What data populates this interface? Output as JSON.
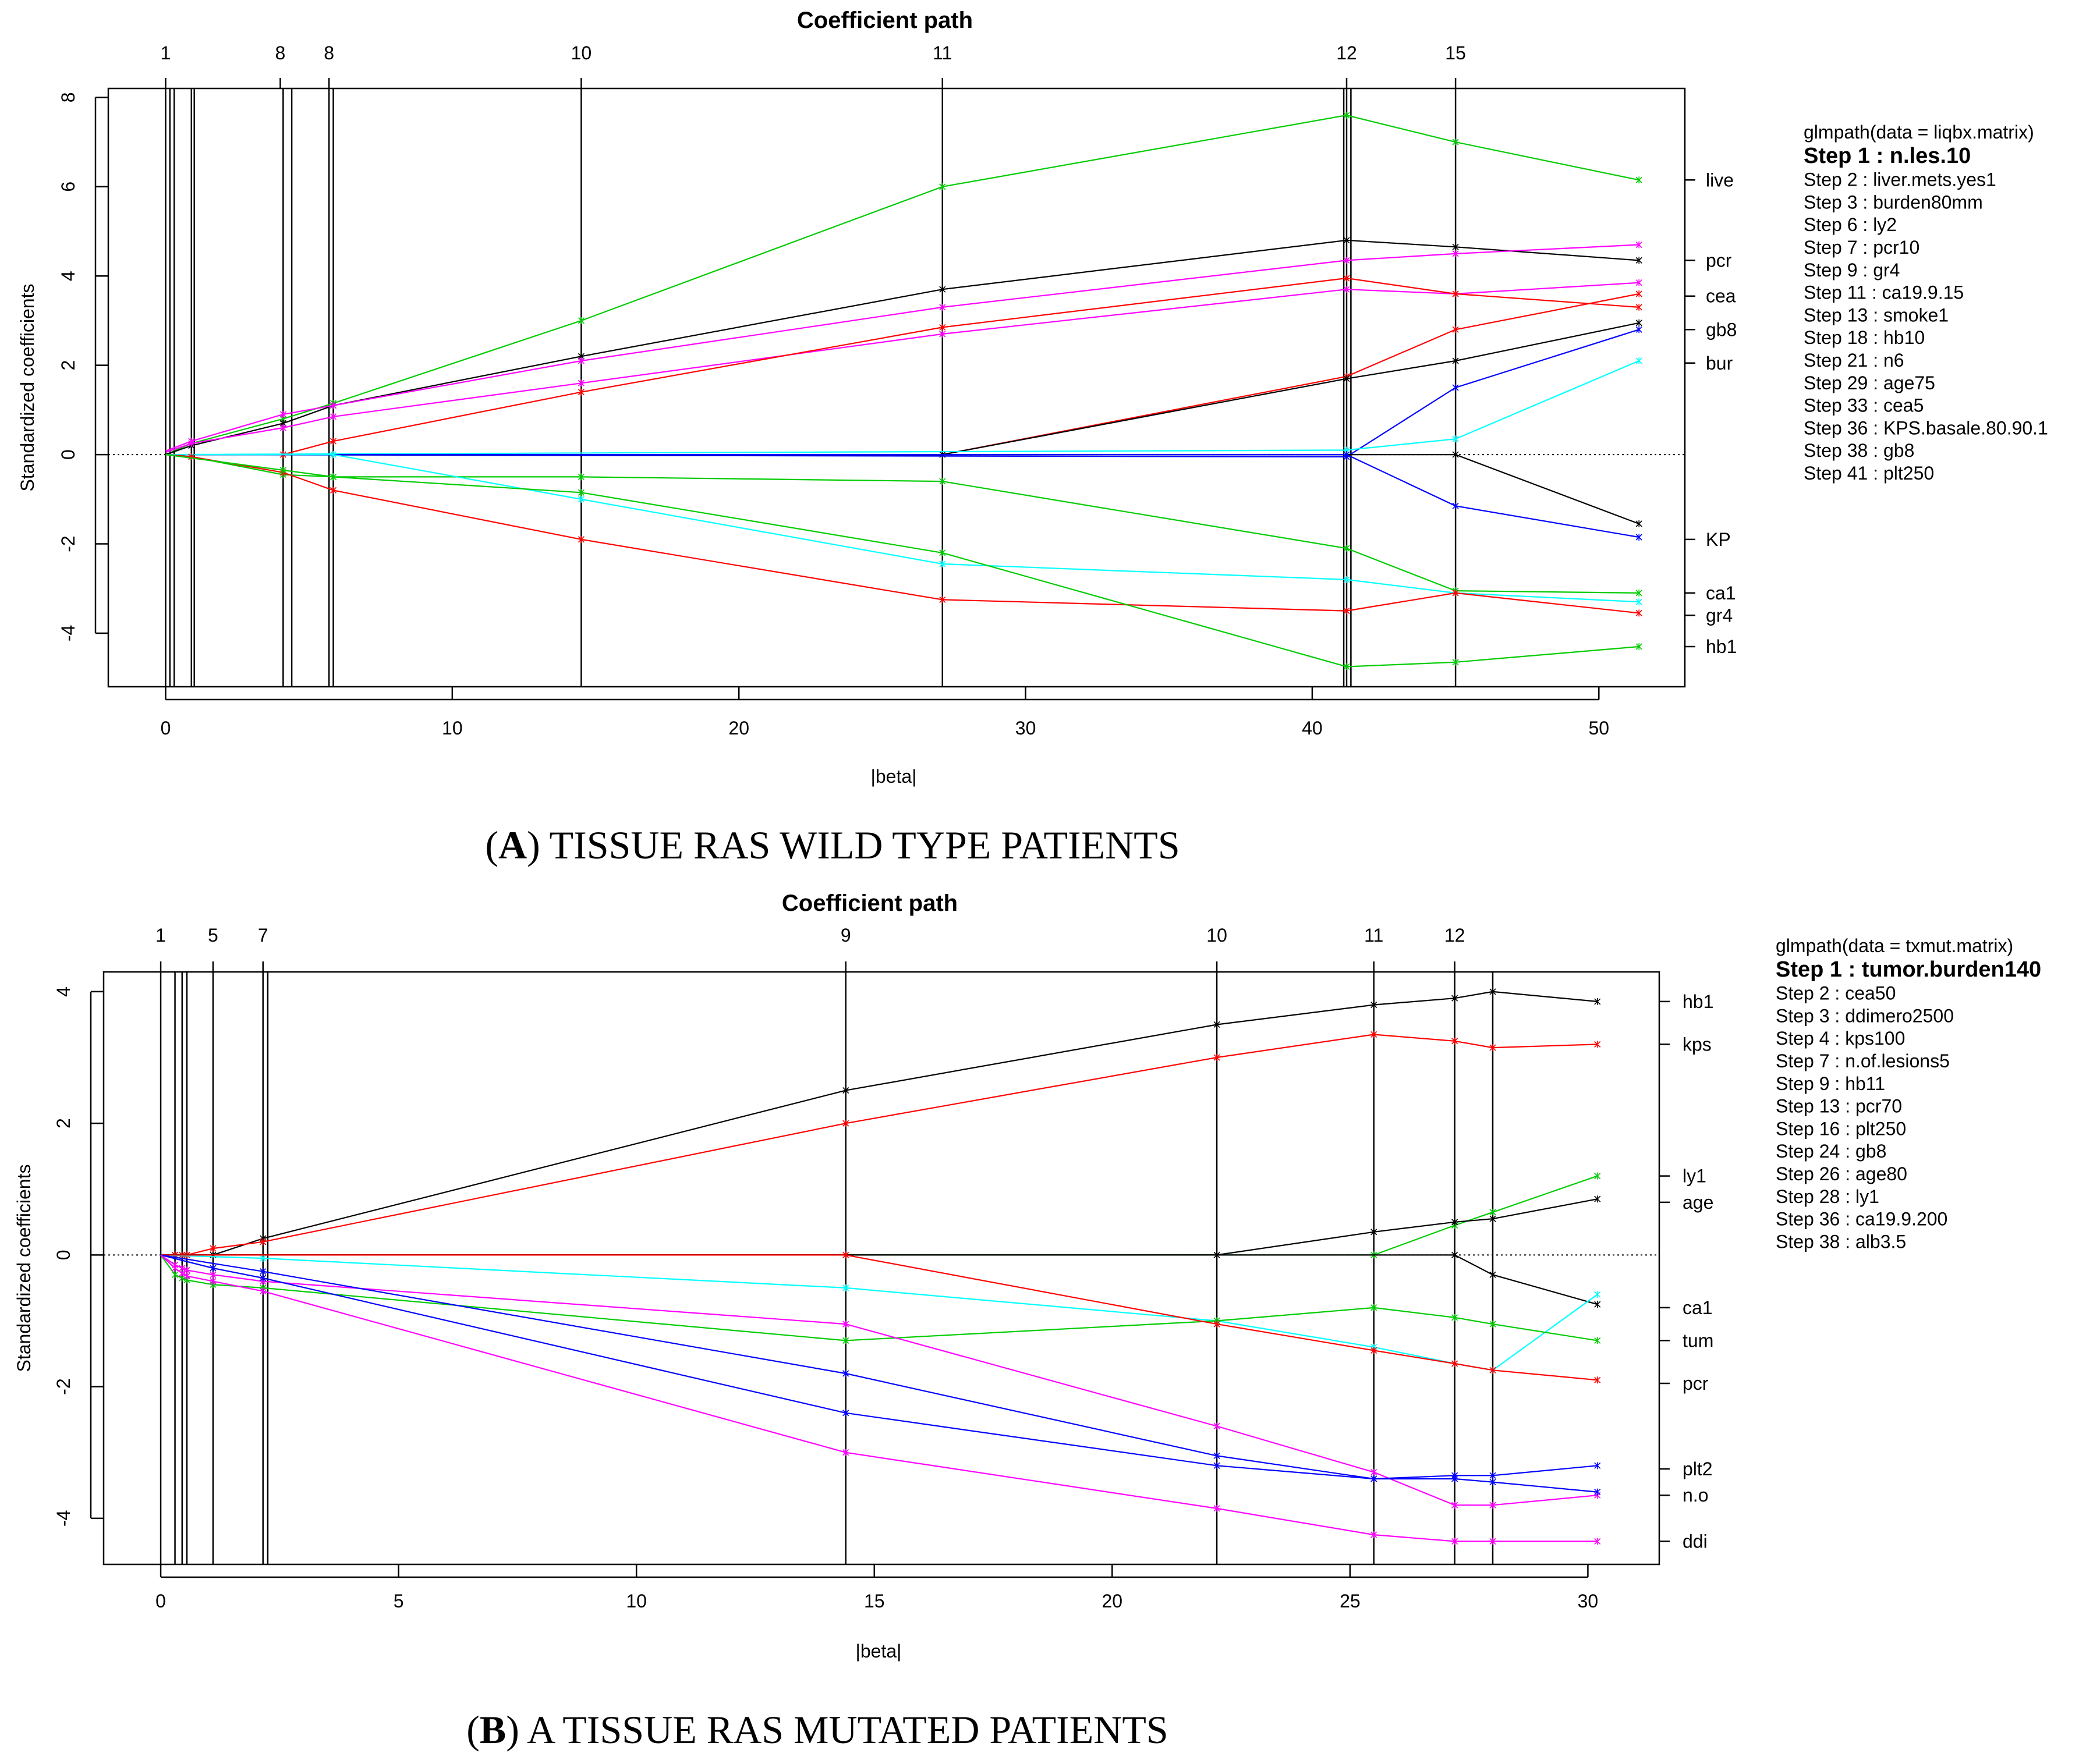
{
  "chart_data": [
    {
      "type": "line",
      "title": "Coefficient path",
      "xlabel": "|beta|",
      "ylabel": "Standardized coefficients",
      "xlim": [
        -2,
        53
      ],
      "ylim": [
        -5.2,
        8.2
      ],
      "xticks": [
        0,
        10,
        20,
        30,
        40,
        50
      ],
      "yticks": [
        -4,
        -2,
        0,
        2,
        4,
        6,
        8
      ],
      "step_lines": [
        0,
        0.15,
        0.3,
        0.9,
        1.0,
        4.1,
        4.4,
        5.7,
        5.85,
        14.5,
        27.1,
        41.1,
        41.2,
        41.35,
        45.0
      ],
      "top_ticks": [
        {
          "x": 0,
          "label": "1"
        },
        {
          "x": 4,
          "label": "8"
        },
        {
          "x": 5.7,
          "label": "8"
        },
        {
          "x": 14.5,
          "label": "10"
        },
        {
          "x": 27.1,
          "label": "11"
        },
        {
          "x": 41.2,
          "label": "12"
        },
        {
          "x": 45.0,
          "label": "15"
        }
      ],
      "right_labels": [
        {
          "y": 6.15,
          "label": "live"
        },
        {
          "y": 4.35,
          "label": "pcr"
        },
        {
          "y": 3.55,
          "label": "cea"
        },
        {
          "y": 2.8,
          "label": "gb8"
        },
        {
          "y": 2.05,
          "label": "bur"
        },
        {
          "y": -1.9,
          "label": "KP"
        },
        {
          "y": -3.1,
          "label": "ca1"
        },
        {
          "y": -3.6,
          "label": "gr4"
        },
        {
          "y": -4.3,
          "label": "hb1"
        }
      ],
      "series": [
        {
          "name": "liver.mets.yes1",
          "color": "#00cc00",
          "x": [
            0,
            0.9,
            4.1,
            5.85,
            14.5,
            27.1,
            41.2,
            45.0,
            51.4
          ],
          "y": [
            0,
            0.25,
            0.8,
            1.15,
            3.0,
            6.0,
            7.6,
            7.0,
            6.15
          ]
        },
        {
          "name": "pcr10",
          "color": "#000000",
          "x": [
            0,
            0.9,
            4.1,
            5.85,
            14.5,
            27.1,
            41.2,
            45.0,
            51.4
          ],
          "y": [
            0,
            0.2,
            0.7,
            1.1,
            2.2,
            3.7,
            4.8,
            4.65,
            4.35
          ]
        },
        {
          "name": "n.les.10",
          "color": "#ff00ff",
          "x": [
            0,
            0.9,
            4.1,
            5.85,
            14.5,
            27.1,
            41.2,
            45.0,
            51.4
          ],
          "y": [
            0.08,
            0.3,
            0.9,
            1.1,
            2.1,
            3.3,
            4.35,
            4.5,
            4.7
          ]
        },
        {
          "name": "cea5",
          "color": "#ff00ff",
          "x": [
            0,
            0.9,
            4.1,
            5.85,
            14.5,
            27.1,
            41.2,
            45.0,
            51.4
          ],
          "y": [
            0.05,
            0.25,
            0.6,
            0.85,
            1.6,
            2.7,
            3.7,
            3.6,
            3.85
          ]
        },
        {
          "name": "ly2",
          "color": "#ff0000",
          "x": [
            0,
            4.1,
            5.85,
            14.5,
            27.1,
            41.2,
            45.0,
            51.4
          ],
          "y": [
            0,
            0,
            0.3,
            1.4,
            2.85,
            3.95,
            3.6,
            3.3
          ]
        },
        {
          "name": "burden80mm",
          "color": "#ff0000",
          "x": [
            0,
            27.1,
            41.2,
            45.0,
            51.4
          ],
          "y": [
            0,
            0,
            1.75,
            2.8,
            3.6
          ]
        },
        {
          "name": "gb8",
          "color": "#000000",
          "x": [
            0,
            27.1,
            41.2,
            45.0,
            51.4
          ],
          "y": [
            0,
            0,
            1.7,
            2.1,
            2.95
          ]
        },
        {
          "name": "age75",
          "color": "#0000ff",
          "x": [
            0,
            41.2,
            45.0,
            51.4
          ],
          "y": [
            0,
            -0.05,
            1.5,
            2.8
          ]
        },
        {
          "name": "smoke1",
          "color": "#00ffff",
          "x": [
            0,
            41.2,
            45.0,
            51.4
          ],
          "y": [
            0,
            0.1,
            0.35,
            2.1
          ]
        },
        {
          "name": "n6",
          "color": "#000000",
          "x": [
            0,
            45.0,
            51.4
          ],
          "y": [
            0,
            0,
            -1.55
          ]
        },
        {
          "name": "KPS.basale.80.90.1",
          "color": "#0000ff",
          "x": [
            0,
            41.2,
            45.0,
            51.4
          ],
          "y": [
            0,
            0,
            -1.15,
            -1.85
          ]
        },
        {
          "name": "ca19.9.15",
          "color": "#00cc00",
          "x": [
            0,
            0.9,
            4.1,
            5.85,
            14.5,
            27.1,
            41.2,
            45.0,
            51.4
          ],
          "y": [
            0,
            -0.05,
            -0.45,
            -0.5,
            -0.5,
            -0.6,
            -2.1,
            -3.05,
            -3.1
          ]
        },
        {
          "name": "plt250",
          "color": "#00ffff",
          "x": [
            0,
            5.85,
            14.5,
            27.1,
            41.2,
            45.0,
            51.4
          ],
          "y": [
            0,
            0,
            -1.0,
            -2.45,
            -2.8,
            -3.1,
            -3.3
          ]
        },
        {
          "name": "gr4",
          "color": "#ff0000",
          "x": [
            0,
            0.9,
            4.1,
            5.85,
            14.5,
            27.1,
            41.2,
            45.0,
            51.4
          ],
          "y": [
            0,
            -0.05,
            -0.4,
            -0.8,
            -1.9,
            -3.25,
            -3.5,
            -3.1,
            -3.55
          ]
        },
        {
          "name": "hb10",
          "color": "#00cc00",
          "x": [
            0,
            4.1,
            5.85,
            14.5,
            27.1,
            41.2,
            45.0,
            51.4
          ],
          "y": [
            0,
            -0.35,
            -0.5,
            -0.85,
            -2.2,
            -4.75,
            -4.65,
            -4.3
          ]
        }
      ],
      "legend": {
        "header": "glmpath(data = liqbx.matrix)",
        "first": "Step 1 :  n.les.10",
        "items": [
          "Step 2 :  liver.mets.yes1",
          "Step 3 :  burden80mm",
          "Step 6 :  ly2",
          "Step 7 :  pcr10",
          "Step 9 :  gr4",
          "Step 11 :  ca19.9.15",
          "Step 13 :  smoke1",
          "Step 18 :  hb10",
          "Step 21 :  n6",
          "Step 29 :  age75",
          "Step 33 :  cea5",
          "Step 36 :  KPS.basale.80.90.1",
          "Step 38 :  gb8",
          "Step 41 :  plt250"
        ]
      },
      "caption_letter": "A",
      "caption_text": " TISSUE RAS WILD TYPE PATIENTS"
    },
    {
      "type": "line",
      "title": "Coefficient path",
      "xlabel": "|beta|",
      "ylabel": "Standardized coefficients",
      "xlim": [
        -1.2,
        31.5
      ],
      "ylim": [
        -4.7,
        4.3
      ],
      "xticks": [
        0,
        5,
        10,
        15,
        20,
        25,
        30
      ],
      "yticks": [
        -4,
        -2,
        0,
        2,
        4
      ],
      "step_lines": [
        0,
        0.3,
        0.45,
        0.55,
        1.1,
        2.15,
        2.25,
        14.4,
        22.2,
        25.5,
        27.2,
        28.0
      ],
      "top_ticks": [
        {
          "x": 0,
          "label": "1"
        },
        {
          "x": 1.1,
          "label": "5"
        },
        {
          "x": 2.15,
          "label": "7"
        },
        {
          "x": 14.4,
          "label": "9"
        },
        {
          "x": 22.2,
          "label": "10"
        },
        {
          "x": 25.5,
          "label": "11"
        },
        {
          "x": 27.2,
          "label": "12"
        }
      ],
      "right_labels": [
        {
          "y": 3.85,
          "label": "hb1"
        },
        {
          "y": 3.2,
          "label": "kps"
        },
        {
          "y": 1.2,
          "label": "ly1"
        },
        {
          "y": 0.8,
          "label": "age"
        },
        {
          "y": -0.8,
          "label": "ca1"
        },
        {
          "y": -1.3,
          "label": "tum"
        },
        {
          "y": -1.95,
          "label": "pcr"
        },
        {
          "y": -3.25,
          "label": "plt2"
        },
        {
          "y": -3.65,
          "label": "n.o"
        },
        {
          "y": -4.35,
          "label": "ddi"
        }
      ],
      "series": [
        {
          "name": "hb11",
          "color": "#000000",
          "x": [
            0,
            0.3,
            0.45,
            0.55,
            1.1,
            2.15,
            14.4,
            22.2,
            25.5,
            27.2,
            28.0,
            30.2
          ],
          "y": [
            0,
            0,
            0,
            0,
            0,
            0.25,
            2.5,
            3.5,
            3.8,
            3.9,
            4.0,
            3.85
          ]
        },
        {
          "name": "kps100",
          "color": "#ff0000",
          "x": [
            0,
            0.3,
            0.45,
            0.55,
            1.1,
            2.15,
            14.4,
            22.2,
            25.5,
            27.2,
            28.0,
            30.2
          ],
          "y": [
            0,
            0,
            0,
            0,
            0.1,
            0.2,
            2.0,
            3.0,
            3.35,
            3.25,
            3.15,
            3.2
          ]
        },
        {
          "name": "ly1",
          "color": "#00cc00",
          "x": [
            0,
            25.5,
            27.2,
            28.0,
            30.2
          ],
          "y": [
            0,
            0,
            0.45,
            0.65,
            1.2
          ]
        },
        {
          "name": "age80",
          "color": "#000000",
          "x": [
            0,
            22.2,
            25.5,
            27.2,
            28.0,
            30.2
          ],
          "y": [
            0,
            0,
            0.35,
            0.5,
            0.55,
            0.85
          ]
        },
        {
          "name": "alb3.5",
          "color": "#000000",
          "x": [
            0,
            27.2,
            28.0,
            30.2
          ],
          "y": [
            0,
            0,
            -0.3,
            -0.75
          ]
        },
        {
          "name": "ca19.9.200",
          "color": "#00ffff",
          "x": [
            0,
            2.15,
            14.4,
            22.2,
            25.5,
            27.2,
            28.0,
            30.2
          ],
          "y": [
            0,
            -0.05,
            -0.5,
            -1.0,
            -1.4,
            -1.65,
            -1.75,
            -0.6
          ]
        },
        {
          "name": "tumor.burden140",
          "color": "#00cc00",
          "x": [
            0,
            0.3,
            0.45,
            0.55,
            1.1,
            2.15,
            14.4,
            22.2,
            25.5,
            27.2,
            28.0,
            30.2
          ],
          "y": [
            0,
            -0.3,
            -0.35,
            -0.38,
            -0.45,
            -0.5,
            -1.3,
            -1.0,
            -0.8,
            -0.95,
            -1.05,
            -1.3
          ]
        },
        {
          "name": "pcr70",
          "color": "#ff0000",
          "x": [
            0,
            14.4,
            22.2,
            25.5,
            27.2,
            28.0,
            30.2
          ],
          "y": [
            0,
            0,
            -1.05,
            -1.45,
            -1.65,
            -1.75,
            -1.9
          ]
        },
        {
          "name": "cea50",
          "color": "#ff00ff",
          "x": [
            0,
            0.3,
            0.45,
            0.55,
            1.1,
            2.15,
            14.4,
            22.2,
            25.5,
            27.2,
            28.0,
            30.2
          ],
          "y": [
            0,
            -0.15,
            -0.2,
            -0.23,
            -0.3,
            -0.4,
            -1.05,
            -2.6,
            -3.3,
            -3.8,
            -3.8,
            -3.65
          ]
        },
        {
          "name": "plt250",
          "color": "#0000ff",
          "x": [
            0,
            2.15,
            14.4,
            22.2,
            25.5,
            27.2,
            28.0,
            30.2
          ],
          "y": [
            0,
            -0.25,
            -1.8,
            -3.05,
            -3.4,
            -3.35,
            -3.35,
            -3.2
          ]
        },
        {
          "name": "n.of.lesions5",
          "color": "#0000ff",
          "x": [
            0,
            1.1,
            2.15,
            14.4,
            22.2,
            25.5,
            27.2,
            28.0,
            30.2
          ],
          "y": [
            0,
            -0.2,
            -0.35,
            -2.4,
            -3.2,
            -3.4,
            -3.4,
            -3.45,
            -3.6
          ]
        },
        {
          "name": "ddimero2500",
          "color": "#ff00ff",
          "x": [
            0,
            0.3,
            0.45,
            0.55,
            1.1,
            2.15,
            14.4,
            22.2,
            25.5,
            27.2,
            28.0,
            30.2
          ],
          "y": [
            0,
            -0.2,
            -0.28,
            -0.32,
            -0.4,
            -0.55,
            -3.0,
            -3.85,
            -4.25,
            -4.35,
            -4.35,
            -4.35
          ]
        }
      ],
      "legend": {
        "header": "glmpath(data = txmut.matrix)",
        "first": "Step 1 :  tumor.burden140",
        "items": [
          "Step 2 :  cea50",
          "Step 3 :  ddimero2500",
          "Step 4 :  kps100",
          "Step 7 :  n.of.lesions5",
          "Step 9 :  hb11",
          "Step 13 :  pcr70",
          "Step 16 :  plt250",
          "Step 24 :  gb8",
          "Step 26 :  age80",
          "Step 28 :  ly1",
          "Step 36 :  ca19.9.200",
          "Step 38 :  alb3.5"
        ]
      },
      "caption_letter": "B",
      "caption_text": " A TISSUE RAS MUTATED PATIENTS"
    }
  ]
}
